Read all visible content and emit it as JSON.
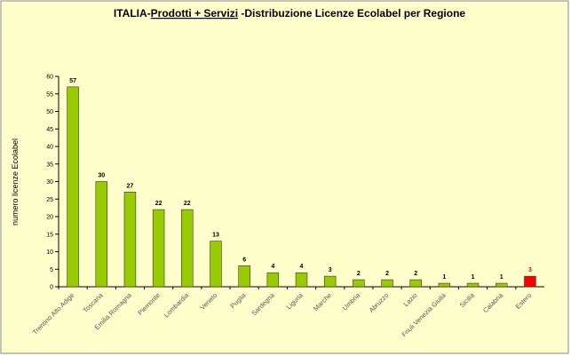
{
  "chart_data": {
    "type": "bar",
    "title": [
      "ITALIA-",
      "Prodotti + Servizi",
      " -Distribuzione Licenze Ecolabel per Regione"
    ],
    "y_label": "numero licenze Ecolabel",
    "categories": [
      "Trentino Alto Adige",
      "Toscana",
      "Emilia Romagna",
      "Piemonte",
      "Lombardia",
      "Veneto",
      "Puglia",
      "Sardegna",
      "Liguria",
      "Marche",
      "Umbria",
      "Abruzzo",
      "Lazio",
      "Friuli Venezia Giulia",
      "Sicilia",
      "Calabria",
      "Estero"
    ],
    "values": [
      57,
      30,
      27,
      22,
      22,
      13,
      6,
      4,
      4,
      3,
      2,
      2,
      2,
      1,
      1,
      1,
      3
    ],
    "colors": [
      "#99cc00",
      "#99cc00",
      "#99cc00",
      "#99cc00",
      "#99cc00",
      "#99cc00",
      "#99cc00",
      "#99cc00",
      "#99cc00",
      "#99cc00",
      "#99cc00",
      "#99cc00",
      "#99cc00",
      "#99cc00",
      "#99cc00",
      "#99cc00",
      "#ff0000"
    ],
    "ylim": [
      0,
      60
    ],
    "yticks": [
      0,
      5,
      10,
      15,
      20,
      25,
      30,
      35,
      40,
      45,
      50,
      55,
      60
    ]
  }
}
